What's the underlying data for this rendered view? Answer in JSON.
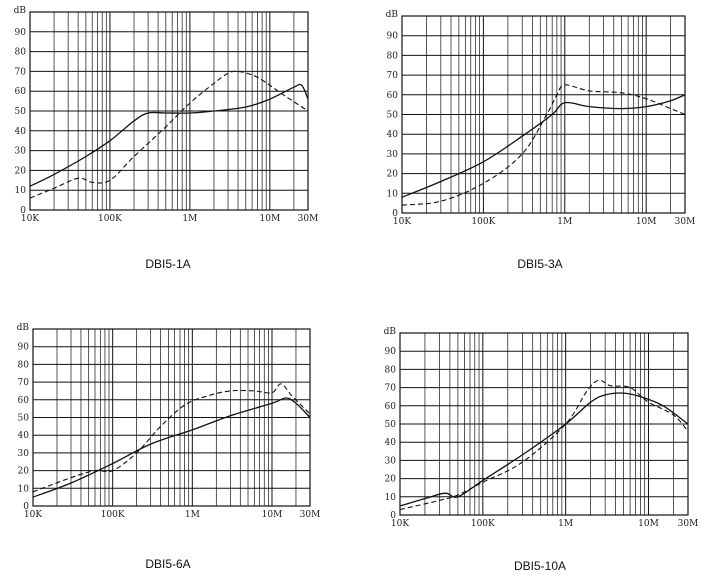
{
  "chart_data": [
    {
      "type": "line",
      "title": "DBI5-1A",
      "xscale": "log",
      "xlim": [
        10000,
        30000000
      ],
      "ylim": [
        0,
        100
      ],
      "ylabel": "dB",
      "yticks": [
        "0",
        "10",
        "20",
        "30",
        "40",
        "50",
        "60",
        "70",
        "80",
        "90"
      ],
      "xticks": [
        {
          "v": 10000,
          "label": "10K"
        },
        {
          "v": 100000,
          "label": "100K"
        },
        {
          "v": 1000000,
          "label": "1M"
        },
        {
          "v": 10000000,
          "label": "10M"
        },
        {
          "v": 30000000,
          "label": "30M"
        }
      ],
      "grid": true,
      "series": [
        {
          "style": "solid",
          "points": [
            [
              10000,
              12
            ],
            [
              20000,
              18
            ],
            [
              50000,
              27
            ],
            [
              100000,
              35
            ],
            [
              200000,
              45
            ],
            [
              300000,
              49
            ],
            [
              500000,
              49
            ],
            [
              1000000,
              49
            ],
            [
              2000000,
              50
            ],
            [
              5000000,
              52
            ],
            [
              10000000,
              56
            ],
            [
              20000000,
              62
            ],
            [
              25000000,
              63
            ],
            [
              30000000,
              56
            ]
          ]
        },
        {
          "style": "dashed",
          "points": [
            [
              10000,
              6
            ],
            [
              20000,
              11
            ],
            [
              40000,
              16
            ],
            [
              60000,
              14
            ],
            [
              100000,
              15
            ],
            [
              200000,
              27
            ],
            [
              500000,
              42
            ],
            [
              1000000,
              54
            ],
            [
              2000000,
              64
            ],
            [
              3000000,
              69
            ],
            [
              4000000,
              70
            ],
            [
              7000000,
              67
            ],
            [
              15000000,
              58
            ],
            [
              30000000,
              50
            ]
          ]
        }
      ]
    },
    {
      "type": "line",
      "title": "DBI5-3A",
      "xscale": "log",
      "xlim": [
        10000,
        30000000
      ],
      "ylim": [
        0,
        100
      ],
      "ylabel": "dB",
      "yticks": [
        "0",
        "10",
        "20",
        "30",
        "40",
        "50",
        "60",
        "70",
        "80",
        "90"
      ],
      "xticks": [
        {
          "v": 10000,
          "label": "10K"
        },
        {
          "v": 100000,
          "label": "100K"
        },
        {
          "v": 1000000,
          "label": "1M"
        },
        {
          "v": 10000000,
          "label": "10M"
        },
        {
          "v": 30000000,
          "label": "30M"
        }
      ],
      "grid": true,
      "series": [
        {
          "style": "solid",
          "points": [
            [
              10000,
              8
            ],
            [
              30000,
              16
            ],
            [
              100000,
              26
            ],
            [
              300000,
              39
            ],
            [
              700000,
              50
            ],
            [
              1000000,
              56
            ],
            [
              2000000,
              54
            ],
            [
              5000000,
              53
            ],
            [
              10000000,
              54
            ],
            [
              20000000,
              57
            ],
            [
              30000000,
              60
            ]
          ]
        },
        {
          "style": "dashed",
          "points": [
            [
              10000,
              4
            ],
            [
              30000,
              6
            ],
            [
              100000,
              15
            ],
            [
              300000,
              30
            ],
            [
              600000,
              50
            ],
            [
              800000,
              60
            ],
            [
              1000000,
              65
            ],
            [
              2000000,
              62
            ],
            [
              5000000,
              61
            ],
            [
              10000000,
              58
            ],
            [
              20000000,
              53
            ],
            [
              30000000,
              50
            ]
          ]
        }
      ]
    },
    {
      "type": "line",
      "title": "DBI5-6A",
      "xscale": "log",
      "xlim": [
        10000,
        30000000
      ],
      "ylim": [
        0,
        100
      ],
      "ylabel": "dB",
      "yticks": [
        "0",
        "10",
        "20",
        "30",
        "40",
        "50",
        "60",
        "70",
        "80",
        "90"
      ],
      "xticks": [
        {
          "v": 10000,
          "label": "10K"
        },
        {
          "v": 100000,
          "label": "100K"
        },
        {
          "v": 1000000,
          "label": "1M"
        },
        {
          "v": 10000000,
          "label": "10M"
        },
        {
          "v": 30000000,
          "label": "30M"
        }
      ],
      "grid": true,
      "series": [
        {
          "style": "solid",
          "points": [
            [
              10000,
              5
            ],
            [
              30000,
              13
            ],
            [
              100000,
              24
            ],
            [
              300000,
              35
            ],
            [
              1000000,
              43
            ],
            [
              3000000,
              51
            ],
            [
              10000000,
              58
            ],
            [
              15000000,
              61
            ],
            [
              20000000,
              58
            ],
            [
              30000000,
              50
            ]
          ]
        },
        {
          "style": "dashed",
          "points": [
            [
              10000,
              8
            ],
            [
              30000,
              16
            ],
            [
              60000,
              20
            ],
            [
              100000,
              20
            ],
            [
              200000,
              30
            ],
            [
              400000,
              45
            ],
            [
              800000,
              57
            ],
            [
              1500000,
              62
            ],
            [
              3000000,
              65
            ],
            [
              6000000,
              65
            ],
            [
              10000000,
              64
            ],
            [
              13000000,
              69
            ],
            [
              18000000,
              62
            ],
            [
              30000000,
              52
            ]
          ]
        }
      ]
    },
    {
      "type": "line",
      "title": "DBI5-10A",
      "xscale": "log",
      "xlim": [
        10000,
        30000000
      ],
      "ylim": [
        0,
        100
      ],
      "ylabel": "dB",
      "yticks": [
        "0",
        "10",
        "20",
        "30",
        "40",
        "50",
        "60",
        "70",
        "80",
        "90"
      ],
      "xticks": [
        {
          "v": 10000,
          "label": "10K"
        },
        {
          "v": 100000,
          "label": "100K"
        },
        {
          "v": 1000000,
          "label": "1M"
        },
        {
          "v": 10000000,
          "label": "10M"
        },
        {
          "v": 30000000,
          "label": "30M"
        }
      ],
      "grid": true,
      "series": [
        {
          "style": "solid",
          "points": [
            [
              10000,
              5
            ],
            [
              20000,
              9
            ],
            [
              35000,
              12
            ],
            [
              50000,
              10
            ],
            [
              100000,
              19
            ],
            [
              300000,
              33
            ],
            [
              1000000,
              50
            ],
            [
              2000000,
              62
            ],
            [
              3000000,
              66
            ],
            [
              5000000,
              67
            ],
            [
              8000000,
              65
            ],
            [
              15000000,
              60
            ],
            [
              30000000,
              50
            ]
          ]
        },
        {
          "style": "dashed",
          "points": [
            [
              10000,
              3
            ],
            [
              30000,
              8
            ],
            [
              50000,
              11
            ],
            [
              100000,
              18
            ],
            [
              300000,
              29
            ],
            [
              1000000,
              50
            ],
            [
              1800000,
              68
            ],
            [
              2500000,
              74
            ],
            [
              3500000,
              71
            ],
            [
              6000000,
              70
            ],
            [
              10000000,
              62
            ],
            [
              20000000,
              55
            ],
            [
              30000000,
              46
            ]
          ]
        }
      ]
    }
  ]
}
